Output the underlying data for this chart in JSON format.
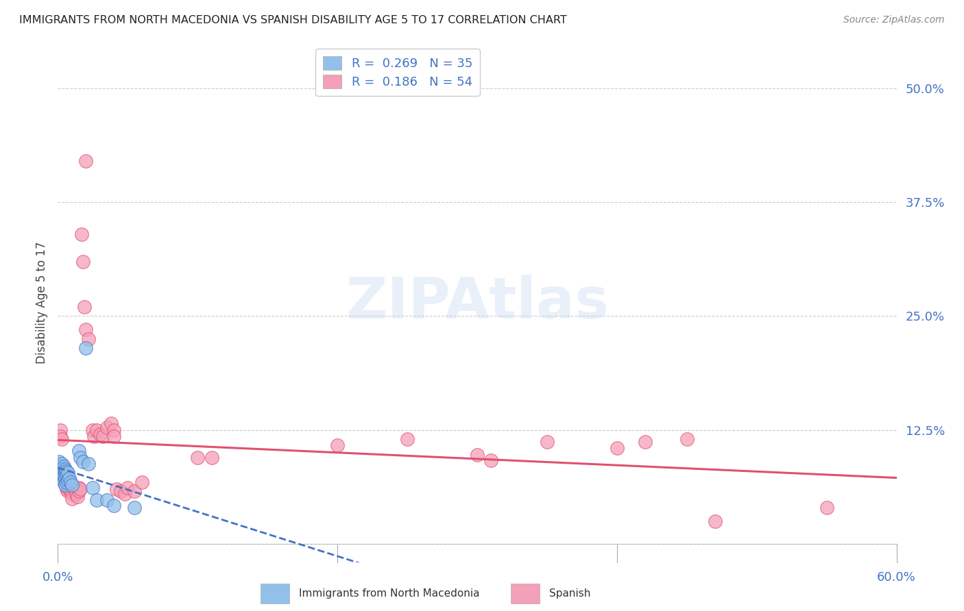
{
  "title": "IMMIGRANTS FROM NORTH MACEDONIA VS SPANISH DISABILITY AGE 5 TO 17 CORRELATION CHART",
  "source": "Source: ZipAtlas.com",
  "ylabel": "Disability Age 5 to 17",
  "xlim": [
    0.0,
    0.6
  ],
  "ylim": [
    -0.02,
    0.55
  ],
  "ytick_labels": [
    "",
    "12.5%",
    "25.0%",
    "37.5%",
    "50.0%"
  ],
  "yticks": [
    0.0,
    0.125,
    0.25,
    0.375,
    0.5
  ],
  "color_blue": "#92C0EA",
  "color_pink": "#F4A0B8",
  "trendline_blue": "#4472C4",
  "trendline_pink": "#E05070",
  "watermark": "ZIPAtlas",
  "background_color": "#FFFFFF",
  "blue_scatter": [
    [
      0.001,
      0.09
    ],
    [
      0.001,
      0.085
    ],
    [
      0.002,
      0.082
    ],
    [
      0.002,
      0.078
    ],
    [
      0.002,
      0.075
    ],
    [
      0.003,
      0.088
    ],
    [
      0.003,
      0.082
    ],
    [
      0.003,
      0.078
    ],
    [
      0.003,
      0.072
    ],
    [
      0.004,
      0.085
    ],
    [
      0.004,
      0.08
    ],
    [
      0.004,
      0.075
    ],
    [
      0.004,
      0.068
    ],
    [
      0.005,
      0.082
    ],
    [
      0.005,
      0.078
    ],
    [
      0.005,
      0.072
    ],
    [
      0.005,
      0.065
    ],
    [
      0.006,
      0.08
    ],
    [
      0.006,
      0.075
    ],
    [
      0.006,
      0.068
    ],
    [
      0.007,
      0.078
    ],
    [
      0.007,
      0.07
    ],
    [
      0.008,
      0.072
    ],
    [
      0.009,
      0.068
    ],
    [
      0.01,
      0.065
    ],
    [
      0.015,
      0.102
    ],
    [
      0.016,
      0.095
    ],
    [
      0.018,
      0.09
    ],
    [
      0.02,
      0.215
    ],
    [
      0.022,
      0.088
    ],
    [
      0.025,
      0.062
    ],
    [
      0.028,
      0.048
    ],
    [
      0.035,
      0.048
    ],
    [
      0.04,
      0.042
    ],
    [
      0.055,
      0.04
    ]
  ],
  "pink_scatter": [
    [
      0.002,
      0.125
    ],
    [
      0.002,
      0.118
    ],
    [
      0.003,
      0.115
    ],
    [
      0.004,
      0.082
    ],
    [
      0.004,
      0.072
    ],
    [
      0.005,
      0.068
    ],
    [
      0.006,
      0.065
    ],
    [
      0.006,
      0.06
    ],
    [
      0.007,
      0.062
    ],
    [
      0.007,
      0.058
    ],
    [
      0.008,
      0.06
    ],
    [
      0.009,
      0.058
    ],
    [
      0.01,
      0.06
    ],
    [
      0.01,
      0.055
    ],
    [
      0.01,
      0.05
    ],
    [
      0.012,
      0.06
    ],
    [
      0.013,
      0.055
    ],
    [
      0.014,
      0.052
    ],
    [
      0.015,
      0.062
    ],
    [
      0.015,
      0.058
    ],
    [
      0.016,
      0.06
    ],
    [
      0.017,
      0.34
    ],
    [
      0.018,
      0.31
    ],
    [
      0.019,
      0.26
    ],
    [
      0.02,
      0.42
    ],
    [
      0.02,
      0.235
    ],
    [
      0.022,
      0.225
    ],
    [
      0.025,
      0.125
    ],
    [
      0.026,
      0.118
    ],
    [
      0.028,
      0.125
    ],
    [
      0.03,
      0.12
    ],
    [
      0.032,
      0.118
    ],
    [
      0.035,
      0.128
    ],
    [
      0.038,
      0.132
    ],
    [
      0.04,
      0.125
    ],
    [
      0.04,
      0.118
    ],
    [
      0.042,
      0.06
    ],
    [
      0.045,
      0.058
    ],
    [
      0.048,
      0.055
    ],
    [
      0.05,
      0.062
    ],
    [
      0.055,
      0.058
    ],
    [
      0.06,
      0.068
    ],
    [
      0.1,
      0.095
    ],
    [
      0.11,
      0.095
    ],
    [
      0.2,
      0.108
    ],
    [
      0.25,
      0.115
    ],
    [
      0.3,
      0.098
    ],
    [
      0.31,
      0.092
    ],
    [
      0.35,
      0.112
    ],
    [
      0.4,
      0.105
    ],
    [
      0.42,
      0.112
    ],
    [
      0.45,
      0.115
    ],
    [
      0.47,
      0.025
    ],
    [
      0.55,
      0.04
    ]
  ]
}
